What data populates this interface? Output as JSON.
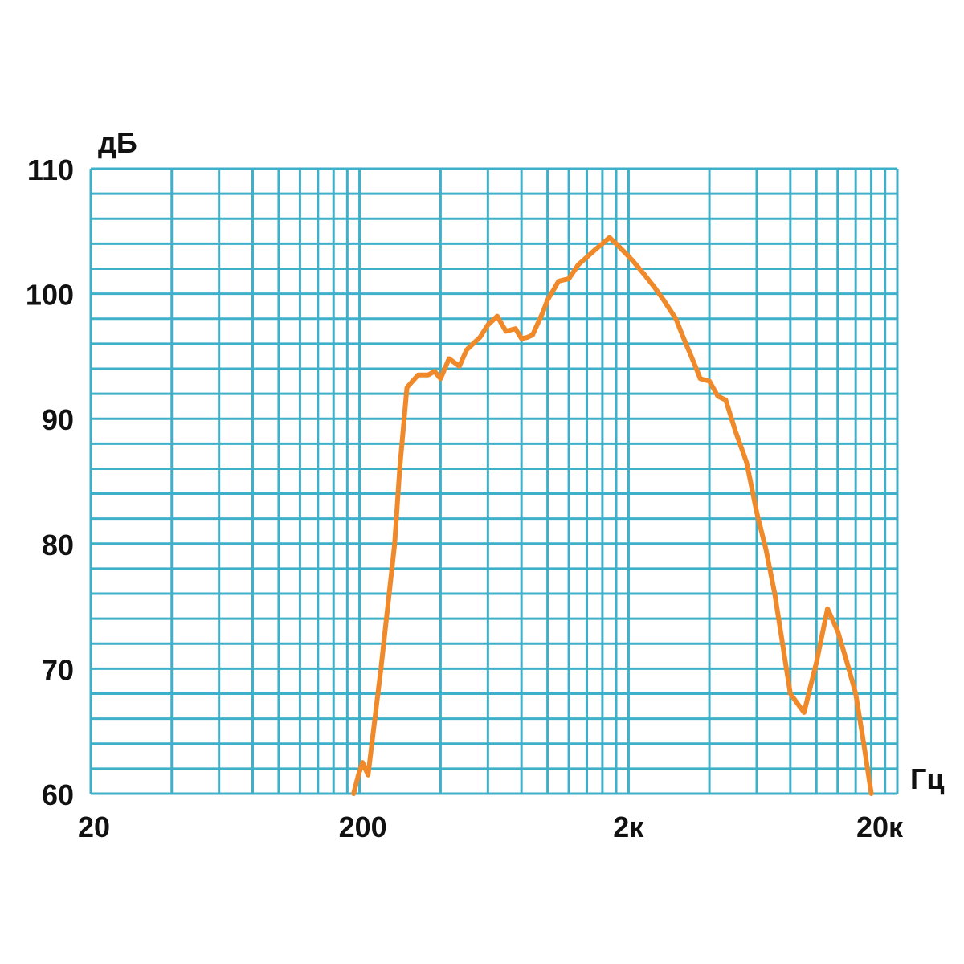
{
  "chart_data": {
    "type": "line",
    "xscale": "log",
    "xlim": [
      20,
      20000
    ],
    "ylim": [
      60,
      110
    ],
    "grid": true,
    "ylabel": "дБ",
    "xlabel": "Гц",
    "x_tick_labels": [
      "20",
      "200",
      "2к",
      "20к"
    ],
    "y_tick_labels": [
      "110",
      "100",
      "90",
      "80",
      "70",
      "60"
    ],
    "grid_color": "#3fb0c9",
    "line_color": "#f0892a",
    "series": [
      {
        "x": [
          190,
          198,
          205,
          215,
          240,
          270,
          282,
          300,
          330,
          360,
          380,
          400,
          430,
          470,
          500,
          560,
          600,
          650,
          700,
          760,
          800,
          840,
          880,
          960,
          1000,
          1100,
          1200,
          1300,
          1500,
          1600,
          1700,
          1800,
          2000,
          2100,
          2300,
          2500,
          2700,
          3000,
          3200,
          3500,
          3700,
          4000,
          4300,
          4600,
          5000,
          5500,
          6000,
          6500,
          7000,
          8000,
          9000,
          10000,
          11000,
          12000,
          13000,
          14000,
          15000,
          16000
        ],
        "y": [
          60,
          61.5,
          62.5,
          61.5,
          70,
          80,
          86,
          92.5,
          93.5,
          93.5,
          93.8,
          93.2,
          94.8,
          94.2,
          95.5,
          96.5,
          97.5,
          98.2,
          97.0,
          97.2,
          96.4,
          96.5,
          96.7,
          98.5,
          99.5,
          101.0,
          101.2,
          102.3,
          103.5,
          104.0,
          104.5,
          104.0,
          103.0,
          102.5,
          101.5,
          100.5,
          99.5,
          98.0,
          96.5,
          94.5,
          93.2,
          93.0,
          91.8,
          91.5,
          89.0,
          86.5,
          82.5,
          79.5,
          76.0,
          68.0,
          66.5,
          70.5,
          74.8,
          73.0,
          70.5,
          68.0,
          64.0,
          60.0
        ]
      }
    ]
  }
}
